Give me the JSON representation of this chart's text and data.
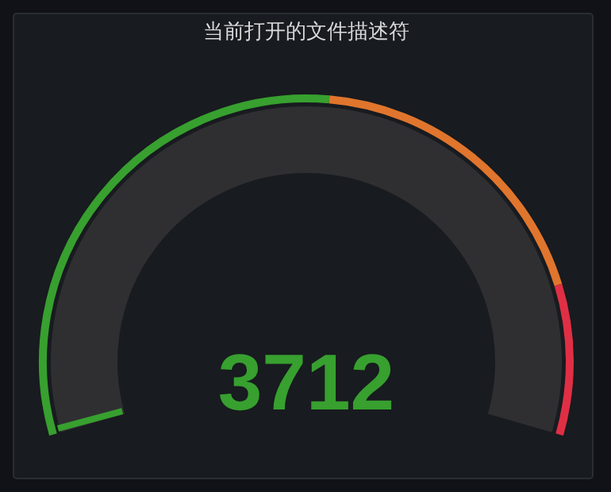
{
  "chart_data": {
    "type": "other",
    "title": "当前打开的文件描述符",
    "values": [
      3712
    ],
    "data_labels": true,
    "color": "#37a02f"
  }
}
